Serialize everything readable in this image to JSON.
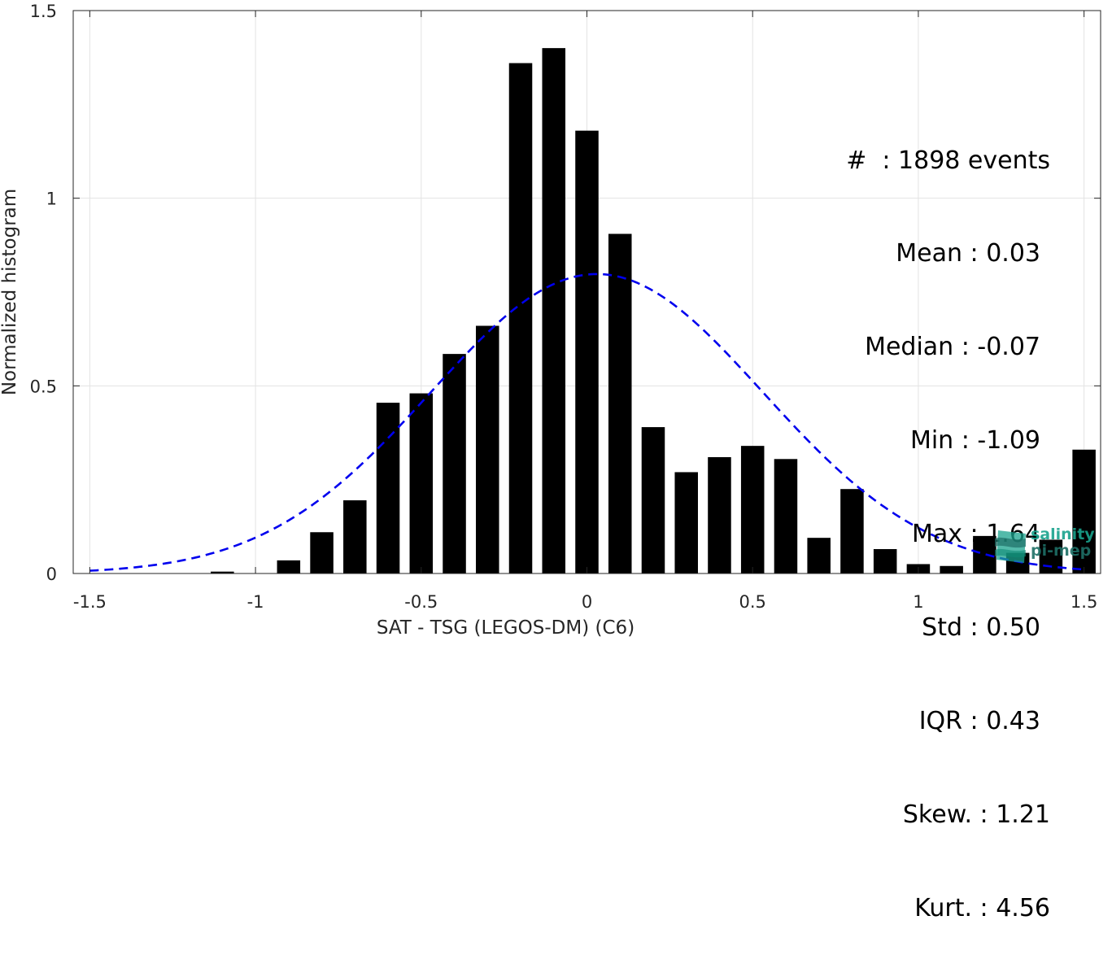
{
  "chart_data": {
    "type": "bar",
    "xlabel": "SAT - TSG (LEGOS-DM) (C6)",
    "ylabel": "Normalized histogram",
    "xlim": [
      -1.55,
      1.55
    ],
    "ylim": [
      0,
      1.5
    ],
    "xticks": [
      -1.5,
      -1,
      -0.5,
      0,
      0.5,
      1,
      1.5
    ],
    "xtick_labels": [
      "-1.5",
      "-1",
      "-0.5",
      "0",
      "0.5",
      "1",
      "1.5"
    ],
    "yticks": [
      0,
      0.5,
      1,
      1.5
    ],
    "ytick_labels": [
      "0",
      "0.5",
      "1",
      "1.5"
    ],
    "grid": true,
    "bar_color": "#000000",
    "bar_width": 0.07,
    "bins": [
      {
        "x": -1.1,
        "y": 0.005
      },
      {
        "x": -0.9,
        "y": 0.035
      },
      {
        "x": -0.8,
        "y": 0.11
      },
      {
        "x": -0.7,
        "y": 0.195
      },
      {
        "x": -0.6,
        "y": 0.455
      },
      {
        "x": -0.5,
        "y": 0.48
      },
      {
        "x": -0.4,
        "y": 0.585
      },
      {
        "x": -0.3,
        "y": 0.66
      },
      {
        "x": -0.2,
        "y": 1.36
      },
      {
        "x": -0.1,
        "y": 1.4
      },
      {
        "x": 0.0,
        "y": 1.18
      },
      {
        "x": 0.1,
        "y": 0.905
      },
      {
        "x": 0.2,
        "y": 0.39
      },
      {
        "x": 0.3,
        "y": 0.27
      },
      {
        "x": 0.4,
        "y": 0.31
      },
      {
        "x": 0.5,
        "y": 0.34
      },
      {
        "x": 0.6,
        "y": 0.305
      },
      {
        "x": 0.7,
        "y": 0.095
      },
      {
        "x": 0.8,
        "y": 0.225
      },
      {
        "x": 0.9,
        "y": 0.065
      },
      {
        "x": 1.0,
        "y": 0.025
      },
      {
        "x": 1.1,
        "y": 0.02
      },
      {
        "x": 1.2,
        "y": 0.1
      },
      {
        "x": 1.3,
        "y": 0.055
      },
      {
        "x": 1.4,
        "y": 0.09
      },
      {
        "x": 1.5,
        "y": 0.33
      }
    ],
    "fit_curve": {
      "type": "normal",
      "mean": 0.03,
      "std": 0.5,
      "color": "#0000ee",
      "style": "dashed",
      "x_range": [
        -1.5,
        1.5
      ]
    },
    "stats": [
      "#  : 1898 events",
      "Mean : 0.03",
      "Median : -0.07",
      "Min : -1.09",
      "Max : 1.64",
      "Std : 0.50",
      "IQR : 0.43",
      "Skew. : 1.21",
      "Kurt. : 4.56"
    ]
  },
  "logo": {
    "line1": "salinity",
    "line2": "pi-mep",
    "colors": [
      "#19a38d",
      "#1f6f66"
    ]
  }
}
